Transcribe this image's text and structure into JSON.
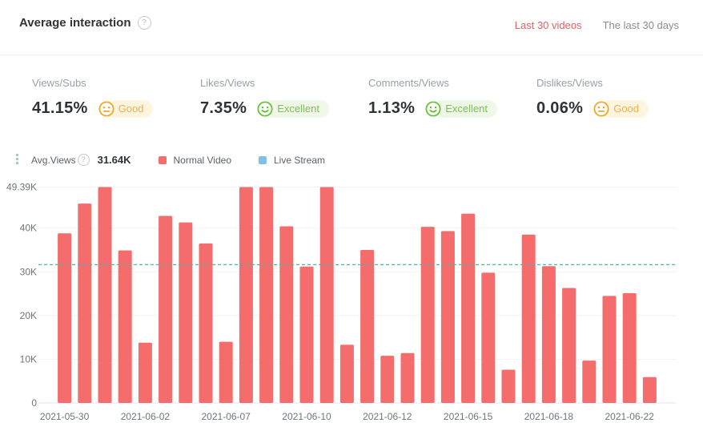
{
  "header": {
    "title": "Average interaction",
    "help_icon": "?",
    "tabs": [
      {
        "label": "Last 30 videos",
        "active": true
      },
      {
        "label": "The last 30 days",
        "active": false
      }
    ]
  },
  "metrics": [
    {
      "label": "Views/Subs",
      "value": "41.15%",
      "rating": "Good",
      "level": "good"
    },
    {
      "label": "Likes/Views",
      "value": "7.35%",
      "rating": "Excellent",
      "level": "excellent"
    },
    {
      "label": "Comments/Views",
      "value": "1.13%",
      "rating": "Excellent",
      "level": "excellent"
    },
    {
      "label": "Dislikes/Views",
      "value": "0.06%",
      "rating": "Good",
      "level": "good"
    }
  ],
  "legend": {
    "avg_label": "Avg.Views",
    "avg_help_icon": "?",
    "avg_value": "31.64K",
    "series": [
      {
        "label": "Normal Video",
        "color": "#f56c6c"
      },
      {
        "label": "Live Stream",
        "color": "#7ec2e8"
      }
    ]
  },
  "colors": {
    "bar": "#f56c6c",
    "live_stream": "#7ec2e8",
    "avg_line": "#4db6ac",
    "active_tab": "#e65d5d",
    "good": "#f5a623",
    "excellent": "#67c23a",
    "gridline": "#f0f2f5",
    "axis_line": "#e3e6ea",
    "axis_text": "#6e757c"
  },
  "chart_data": {
    "type": "bar",
    "title": "Average interaction - views per video",
    "series_name": "Normal Video",
    "unit": "K",
    "ylim": [
      0,
      49.39
    ],
    "grid": true,
    "legend_position": "top",
    "y_ticks": [
      {
        "value": 0,
        "label": "0"
      },
      {
        "value": 10,
        "label": "10K"
      },
      {
        "value": 20,
        "label": "20K"
      },
      {
        "value": 30,
        "label": "30K"
      },
      {
        "value": 40,
        "label": "40K"
      },
      {
        "value": 49.39,
        "label": "49.39K"
      }
    ],
    "values_k": [
      38.8,
      45.6,
      49.39,
      34.9,
      13.8,
      42.8,
      41.3,
      36.5,
      14.0,
      49.39,
      49.39,
      40.4,
      31.2,
      49.39,
      13.3,
      35.0,
      10.8,
      11.4,
      40.3,
      39.3,
      43.3,
      29.8,
      7.6,
      38.5,
      31.3,
      26.3,
      9.7,
      24.5,
      25.1,
      5.9
    ],
    "x_tick_labels": [
      {
        "index": 0,
        "label": "2021-05-30"
      },
      {
        "index": 4,
        "label": "2021-06-02"
      },
      {
        "index": 8,
        "label": "2021-06-07"
      },
      {
        "index": 12,
        "label": "2021-06-10"
      },
      {
        "index": 16,
        "label": "2021-06-12"
      },
      {
        "index": 20,
        "label": "2021-06-15"
      },
      {
        "index": 24,
        "label": "2021-06-18"
      },
      {
        "index": 28,
        "label": "2021-06-22"
      }
    ],
    "avg_line": {
      "value": 31.64,
      "label": "31.64K",
      "color": "#4db6ac"
    }
  }
}
